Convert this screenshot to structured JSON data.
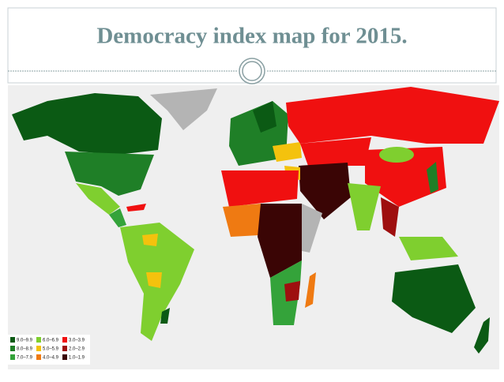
{
  "header": {
    "title": "Democracy index map for 2015."
  },
  "legend": [
    {
      "label": "9.0–9.9",
      "color": "#0b5a14"
    },
    {
      "label": "8.0–8.9",
      "color": "#1f7f27"
    },
    {
      "label": "7.0–7.9",
      "color": "#34a33a"
    },
    {
      "label": "6.0–6.9",
      "color": "#7fcf2f"
    },
    {
      "label": "5.0–5.9",
      "color": "#f4c20d"
    },
    {
      "label": "4.0–4.9",
      "color": "#ef7a12"
    },
    {
      "label": "3.0–3.9",
      "color": "#f01010"
    },
    {
      "label": "2.0–2.9",
      "color": "#9e0f0f"
    },
    {
      "label": "1.0–1.9",
      "color": "#3a0505"
    }
  ]
}
